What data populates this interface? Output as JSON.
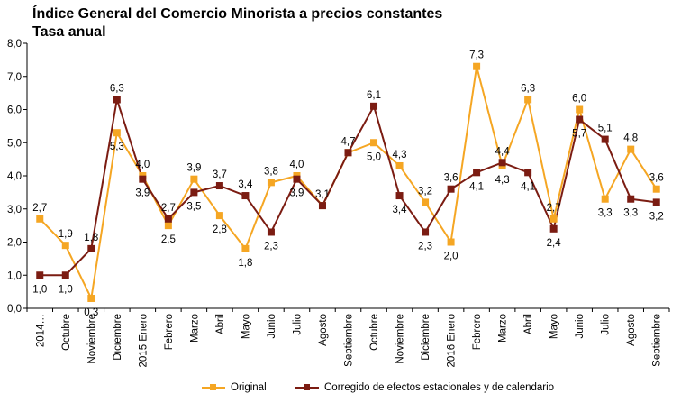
{
  "title": "Índice General del Comercio Minorista a precios constantes",
  "subtitle": "Tasa anual",
  "colors": {
    "original": "#F5A623",
    "corregido": "#7B1C12"
  },
  "chart_data": {
    "type": "line",
    "title": "Índice General del Comercio Minorista a precios constantes",
    "subtitle": "Tasa anual",
    "categories": [
      "2014…",
      "Octubre",
      "Noviembre",
      "Diciembre",
      "2015 Enero",
      "Febrero",
      "Marzo",
      "Abril",
      "Mayo",
      "Junio",
      "Julio",
      "Agosto",
      "Septiembre",
      "Octubre",
      "Noviembre",
      "Diciembre",
      "2016 Enero",
      "Febrero",
      "Marzo",
      "Abril",
      "Mayo",
      "Junio",
      "Julio",
      "Agosto",
      "Septiembre"
    ],
    "series": [
      {
        "name": "Original",
        "color": "#F5A623",
        "values": [
          2.7,
          1.9,
          0.3,
          5.3,
          4.0,
          2.5,
          3.9,
          2.8,
          1.8,
          3.8,
          4.0,
          3.1,
          4.7,
          5.0,
          4.3,
          3.2,
          2.0,
          7.3,
          4.3,
          6.3,
          2.7,
          6.0,
          3.3,
          4.8,
          3.6
        ],
        "labels": [
          "2,7",
          "1,9",
          "0,3",
          "5,3",
          "4,0",
          "2,5",
          "3,9",
          "2,8",
          "1,8",
          "3,8",
          "4,0",
          "3,1",
          "4,7",
          "5,0",
          "4,3",
          "3,2",
          "2,0",
          "7,3",
          "4,3",
          "6,3",
          "2,7",
          "6,0",
          "3,3",
          "4,8",
          "3,6"
        ]
      },
      {
        "name": "Corregido de efectos estacionales y de calendario",
        "color": "#7B1C12",
        "values": [
          1.0,
          1.0,
          1.8,
          6.3,
          3.9,
          2.7,
          3.5,
          3.7,
          3.4,
          2.3,
          3.9,
          3.1,
          4.7,
          6.1,
          3.4,
          2.3,
          3.6,
          4.1,
          4.4,
          4.1,
          2.4,
          5.7,
          5.1,
          3.3,
          3.2
        ],
        "labels": [
          "1,0",
          "1,0",
          "1,8",
          "6,3",
          "3,9",
          "2,7",
          "3,5",
          "3,7",
          "3,4",
          "2,3",
          "3,9",
          "",
          "",
          "6,1",
          "3,4",
          "2,3",
          "3,6",
          "4,1",
          "4,4",
          "4,1",
          "2,4",
          "5,7",
          "5,1",
          "3,3",
          "3,2"
        ]
      }
    ],
    "ylim": [
      0,
      8
    ],
    "yticks": [
      "0,0",
      "1,0",
      "2,0",
      "3,0",
      "4,0",
      "5,0",
      "6,0",
      "7,0",
      "8,0"
    ],
    "xlabel": "",
    "ylabel": "",
    "grid": false,
    "legend": "bottom"
  }
}
